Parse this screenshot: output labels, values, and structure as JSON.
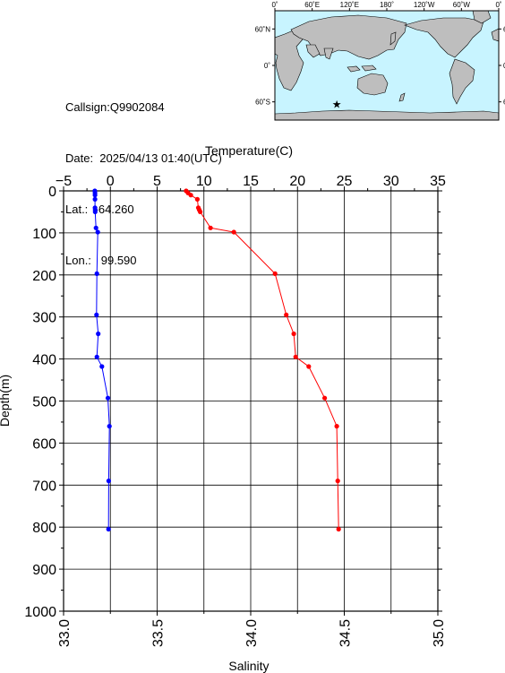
{
  "station": {
    "callsign": "Callsign:Q9902084",
    "date": "Date:  2025/04/13 01:40(UTC)",
    "lat": "Lat.:  -64.260",
    "lon": "Lon.:   99.590"
  },
  "map": {
    "lon_ticks": [
      "0˚",
      "60˚E",
      "120˚E",
      "180˚",
      "120˚W",
      "60˚W",
      "0˚"
    ],
    "lat_ticks": [
      "60˚N",
      "0˚",
      "60˚S"
    ],
    "station_marker": {
      "lon": 99.59,
      "lat": -64.26
    },
    "colors": {
      "ocean": "#c8f4ff",
      "land": "#bebebe",
      "marker": "#ff0000"
    }
  },
  "chart_data": {
    "type": "line",
    "title": "",
    "top_axis": {
      "label": "Temperature(C)",
      "range": [
        -5,
        35
      ],
      "ticks": [
        -5,
        0,
        5,
        10,
        15,
        20,
        25,
        30,
        35
      ]
    },
    "bottom_axis": {
      "label": "Salinity",
      "range": [
        33.0,
        35.0
      ],
      "ticks": [
        "33.0",
        "33.5",
        "34.0",
        "34.5",
        "35.0"
      ]
    },
    "y_axis": {
      "label": "Depth(m)",
      "range": [
        0,
        1000
      ],
      "inverted": true,
      "ticks": [
        0,
        100,
        200,
        300,
        400,
        500,
        600,
        700,
        800,
        900,
        1000
      ]
    },
    "grid": true,
    "series": [
      {
        "kind": "temperature",
        "color": "#ff0000",
        "points": [
          {
            "value": 8.1,
            "depth": 0
          },
          {
            "value": 8.3,
            "depth": 5
          },
          {
            "value": 8.6,
            "depth": 10
          },
          {
            "value": 9.3,
            "depth": 20
          },
          {
            "value": 9.4,
            "depth": 40
          },
          {
            "value": 9.5,
            "depth": 45
          },
          {
            "value": 9.6,
            "depth": 50
          },
          {
            "value": 10.7,
            "depth": 88
          },
          {
            "value": 13.2,
            "depth": 98
          },
          {
            "value": 17.6,
            "depth": 197
          },
          {
            "value": 18.8,
            "depth": 295
          },
          {
            "value": 19.6,
            "depth": 340
          },
          {
            "value": 19.8,
            "depth": 395
          },
          {
            "value": 21.2,
            "depth": 418
          },
          {
            "value": 22.9,
            "depth": 493
          },
          {
            "value": 24.2,
            "depth": 560
          },
          {
            "value": 24.3,
            "depth": 690
          },
          {
            "value": 24.4,
            "depth": 805
          }
        ]
      },
      {
        "kind": "salinity",
        "color": "#0000ff",
        "points": [
          {
            "value": 33.167,
            "depth": 0
          },
          {
            "value": 33.168,
            "depth": 5
          },
          {
            "value": 33.168,
            "depth": 10
          },
          {
            "value": 33.168,
            "depth": 20
          },
          {
            "value": 33.168,
            "depth": 40
          },
          {
            "value": 33.169,
            "depth": 45
          },
          {
            "value": 33.169,
            "depth": 50
          },
          {
            "value": 33.173,
            "depth": 88
          },
          {
            "value": 33.183,
            "depth": 98
          },
          {
            "value": 33.178,
            "depth": 197
          },
          {
            "value": 33.176,
            "depth": 295
          },
          {
            "value": 33.185,
            "depth": 340
          },
          {
            "value": 33.178,
            "depth": 395
          },
          {
            "value": 33.205,
            "depth": 418
          },
          {
            "value": 33.237,
            "depth": 493
          },
          {
            "value": 33.245,
            "depth": 560
          },
          {
            "value": 33.241,
            "depth": 690
          },
          {
            "value": 33.24,
            "depth": 805
          }
        ]
      }
    ]
  }
}
